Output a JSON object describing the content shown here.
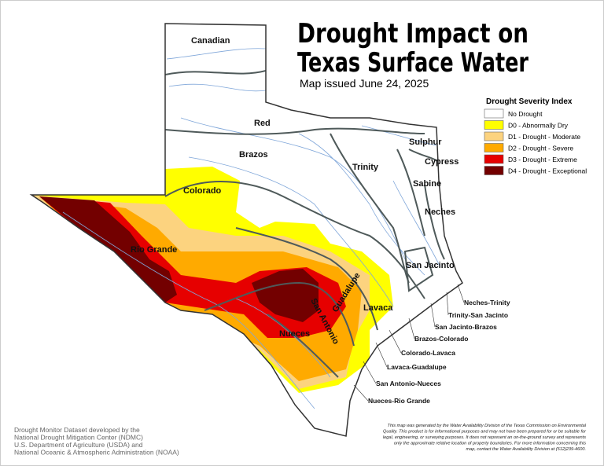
{
  "header": {
    "title": [
      "Drought Impact on",
      "Texas Surface Water"
    ],
    "subtitle": "Map issued June 24, 2025"
  },
  "legend": {
    "title": "Drought Severity Index",
    "items": [
      {
        "label": "No Drought",
        "color": "#ffffff"
      },
      {
        "label": "D0 - Abnormally Dry",
        "color": "#ffff00"
      },
      {
        "label": "D1 - Drought - Moderate",
        "color": "#fcd37f"
      },
      {
        "label": "D2 - Drought - Severe",
        "color": "#ffaa00"
      },
      {
        "label": "D3 - Drought - Extreme",
        "color": "#e60000"
      },
      {
        "label": "D4 - Drought - Exceptional",
        "color": "#730000"
      }
    ]
  },
  "basins": [
    "Canadian",
    "Red",
    "Brazos",
    "Colorado",
    "Rio Grande",
    "Trinity",
    "Sulphur",
    "Cypress",
    "Sabine",
    "Neches",
    "San Jacinto",
    "Guadalupe",
    "San Antonio",
    "Lavaca",
    "Nueces"
  ],
  "coastal_basins": [
    "Neches-Trinity",
    "Trinity-San Jacinto",
    "San Jacinto-Brazos",
    "Brazos-Colorado",
    "Colorado-Lavaca",
    "Lavaca-Guadalupe",
    "San Antonio-Nueces",
    "Nueces-Rio Grande"
  ],
  "credits": [
    "Drought Monitor Dataset developed by the",
    "National Drought Mitigation Center (NDMC)",
    "U.S. Department of Agriculture (USDA) and",
    "National Oceanic & Atmospheric Administration (NOAA)"
  ],
  "disclaimer": [
    "This map was generated by the Water Availability Division of the Texas Commission on Environmental",
    "Quality. This product is for informational purposes and may not have been prepared for or be suitable for",
    "legal, engineering, or surveying purposes. It does not represent an on-the-ground survey and represents",
    "only the approximate relative location of property boundaries. For more information concerning this",
    "map, contact the Water Availability Division at (512)239-4600."
  ]
}
